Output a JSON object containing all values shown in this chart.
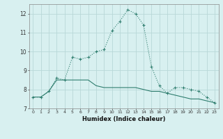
{
  "xlabel": "Humidex (Indice chaleur)",
  "x": [
    0,
    1,
    2,
    3,
    4,
    5,
    6,
    7,
    8,
    9,
    10,
    11,
    12,
    13,
    14,
    15,
    16,
    17,
    18,
    19,
    20,
    21,
    22,
    23
  ],
  "line1_y": [
    7.6,
    7.6,
    7.9,
    8.6,
    8.5,
    9.7,
    9.6,
    9.7,
    10.0,
    10.1,
    11.1,
    11.6,
    12.2,
    12.0,
    11.4,
    9.2,
    8.2,
    7.8,
    8.1,
    8.1,
    8.0,
    7.9,
    7.6,
    7.3
  ],
  "line2_y": [
    7.6,
    7.6,
    7.9,
    8.5,
    8.5,
    8.5,
    8.5,
    8.5,
    8.2,
    8.1,
    8.1,
    8.1,
    8.1,
    8.1,
    8.0,
    7.9,
    7.9,
    7.8,
    7.7,
    7.6,
    7.5,
    7.5,
    7.4,
    7.3
  ],
  "line_color": "#2e7d6e",
  "bg_color": "#d8f0f0",
  "grid_color": "#b8d8d8",
  "ylim": [
    7,
    12.5
  ],
  "yticks": [
    7,
    8,
    9,
    10,
    11,
    12
  ],
  "xticks": [
    0,
    1,
    2,
    3,
    4,
    5,
    6,
    7,
    8,
    9,
    10,
    11,
    12,
    13,
    14,
    15,
    16,
    17,
    18,
    19,
    20,
    21,
    22,
    23
  ]
}
